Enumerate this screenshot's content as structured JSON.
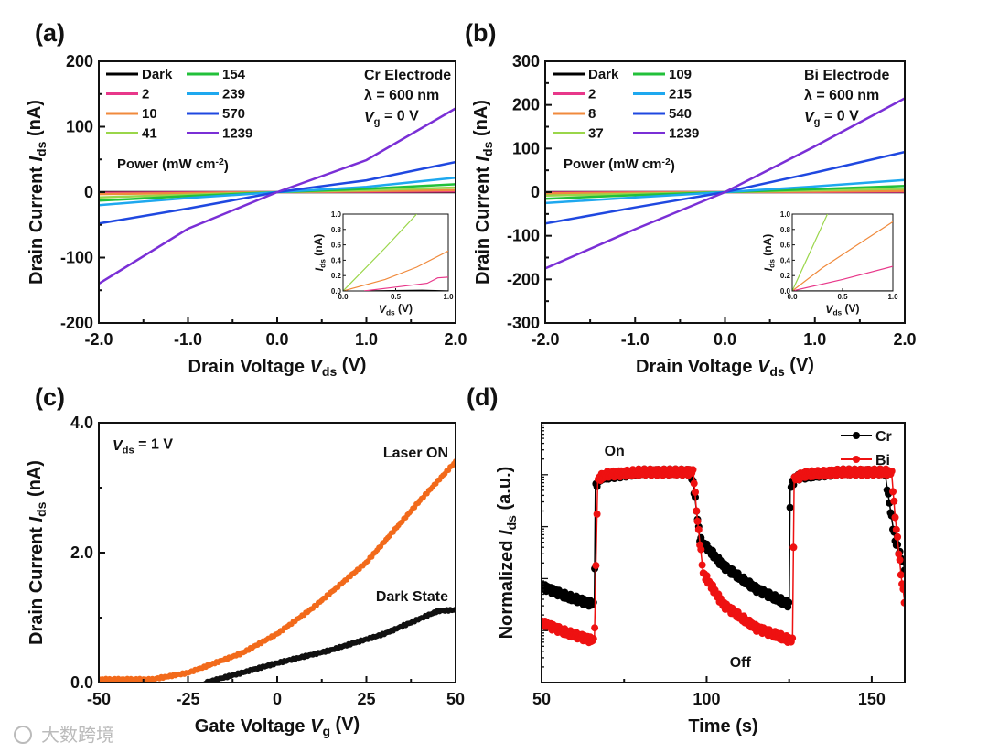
{
  "watermark": "大数跨境",
  "chart_data": [
    {
      "panel": "(a)",
      "type": "line",
      "xlabel": {
        "pre": "Drain Voltage ",
        "var": "V",
        "sub": "ds",
        "post": " (V)"
      },
      "ylabel": {
        "pre": "Drain Current ",
        "var": "I",
        "sub": "ds",
        "post": " (nA)"
      },
      "xlim": [
        -2,
        2
      ],
      "ylim": [
        -200,
        200
      ],
      "xticks": [
        -2,
        -1,
        0,
        1,
        2
      ],
      "xtick_labels": [
        "-2.0",
        "-1.0",
        "0.0",
        "1.0",
        "2.0"
      ],
      "xminor": 0.5,
      "yticks": [
        -200,
        -100,
        0,
        100,
        200
      ],
      "ytick_labels": [
        "-200",
        "-100",
        "0",
        "100",
        "200"
      ],
      "yminor": 50,
      "legend_title": {
        "pre": "Power (mW cm",
        "sup": "-2",
        "post": ")"
      },
      "annotation": [
        "Cr Electrode",
        "λ = 600 nm"
      ],
      "annotation_vg": {
        "var": "V",
        "sub": "g",
        "post": " = 0 V"
      },
      "x": [
        -2,
        -1,
        0,
        1,
        2
      ],
      "series": [
        {
          "name": "Dark",
          "color": "#000000",
          "values": [
            0,
            0,
            0,
            0,
            0
          ]
        },
        {
          "name": "2",
          "color": "#e8388a",
          "values": [
            -1,
            -0.5,
            0,
            0.5,
            1
          ]
        },
        {
          "name": "10",
          "color": "#f08a3c",
          "values": [
            -3,
            -1.5,
            0,
            1.5,
            3
          ]
        },
        {
          "name": "41",
          "color": "#9ad64a",
          "values": [
            -8,
            -4,
            0,
            3,
            7
          ]
        },
        {
          "name": "154",
          "color": "#22c03a",
          "values": [
            -13,
            -6,
            0,
            5,
            12
          ]
        },
        {
          "name": "239",
          "color": "#1ea8ef",
          "values": [
            -20,
            -9,
            0,
            8,
            22
          ]
        },
        {
          "name": "570",
          "color": "#1f48e0",
          "values": [
            -48,
            -25,
            0,
            18,
            46
          ]
        },
        {
          "name": "1239",
          "color": "#7a2fd6",
          "values": [
            -140,
            -56,
            0,
            49,
            128
          ]
        }
      ],
      "inset": {
        "xlabel": {
          "var": "V",
          "sub": "ds",
          "post": " (V)"
        },
        "ylabel": {
          "var": "I",
          "sub": "ds",
          "post": " (nA)"
        },
        "xlim": [
          0,
          1
        ],
        "ylim": [
          0,
          1
        ],
        "xtick_labels": [
          "0.0",
          "0.5",
          "1.0"
        ],
        "ytick_labels": [
          "0.0",
          "0.2",
          "0.4",
          "0.6",
          "0.8",
          "1.0"
        ],
        "series": [
          {
            "name": "Dark",
            "color": "#000000",
            "points": [
              [
                0.2,
                0
              ],
              [
                0.75,
                0.01
              ],
              [
                1,
                0
              ]
            ]
          },
          {
            "name": "2",
            "color": "#e8388a",
            "points": [
              [
                0.2,
                0
              ],
              [
                0.5,
                0.05
              ],
              [
                0.8,
                0.1
              ],
              [
                0.9,
                0.17
              ],
              [
                1,
                0.18
              ]
            ]
          },
          {
            "name": "10",
            "color": "#f08a3c",
            "points": [
              [
                0,
                0
              ],
              [
                0.4,
                0.15
              ],
              [
                0.7,
                0.31
              ],
              [
                1,
                0.52
              ]
            ]
          },
          {
            "name": "41",
            "color": "#9ad64a",
            "points": [
              [
                0,
                0
              ],
              [
                0.4,
                0.56
              ],
              [
                0.7,
                1.0
              ]
            ]
          }
        ]
      }
    },
    {
      "panel": "(b)",
      "type": "line",
      "xlabel": {
        "pre": "Drain Voltage ",
        "var": "V",
        "sub": "ds",
        "post": " (V)"
      },
      "ylabel": {
        "pre": "Drain Current ",
        "var": "I",
        "sub": "ds",
        "post": " (nA)"
      },
      "xlim": [
        -2,
        2
      ],
      "ylim": [
        -300,
        300
      ],
      "xticks": [
        -2,
        -1,
        0,
        1,
        2
      ],
      "xtick_labels": [
        "-2.0",
        "-1.0",
        "0.0",
        "1.0",
        "2.0"
      ],
      "xminor": 0.5,
      "yticks": [
        -300,
        -200,
        -100,
        0,
        100,
        200,
        300
      ],
      "ytick_labels": [
        "-300",
        "-200",
        "-100",
        "0",
        "100",
        "200",
        "300"
      ],
      "yminor": 50,
      "legend_title": {
        "pre": "Power (mW cm",
        "sup": "-2",
        "post": ")"
      },
      "annotation": [
        "Bi Electrode",
        "λ = 600 nm"
      ],
      "annotation_vg": {
        "var": "V",
        "sub": "g",
        "post": " = 0 V"
      },
      "x": [
        -2,
        -1,
        0,
        1,
        2
      ],
      "series": [
        {
          "name": "Dark",
          "color": "#000000",
          "values": [
            0,
            0,
            0,
            0,
            0
          ]
        },
        {
          "name": "2",
          "color": "#e8388a",
          "values": [
            -1,
            -0.5,
            0,
            0.5,
            1
          ]
        },
        {
          "name": "8",
          "color": "#f08a3c",
          "values": [
            -3,
            -1.5,
            0,
            1.5,
            3
          ]
        },
        {
          "name": "37",
          "color": "#9ad64a",
          "values": [
            -8,
            -4,
            0,
            4,
            8
          ]
        },
        {
          "name": "109",
          "color": "#22c03a",
          "values": [
            -15,
            -7,
            0,
            7,
            14
          ]
        },
        {
          "name": "215",
          "color": "#1ea8ef",
          "values": [
            -25,
            -12,
            0,
            13,
            28
          ]
        },
        {
          "name": "540",
          "color": "#1f48e0",
          "values": [
            -72,
            -35,
            0,
            45,
            92
          ]
        },
        {
          "name": "1239",
          "color": "#7a2fd6",
          "values": [
            -175,
            -85,
            0,
            105,
            215
          ]
        }
      ],
      "inset": {
        "xlabel": {
          "var": "V",
          "sub": "ds",
          "post": " (V)"
        },
        "ylabel": {
          "var": "I",
          "sub": "ds",
          "post": " (nA)"
        },
        "xlim": [
          0,
          1
        ],
        "ylim": [
          0,
          1
        ],
        "xtick_labels": [
          "0.0",
          "0.5",
          "1.0"
        ],
        "ytick_labels": [
          "0.0",
          "0.2",
          "0.4",
          "0.6",
          "0.8",
          "1.0"
        ],
        "series": [
          {
            "name": "Dark",
            "color": "#000000",
            "points": [
              [
                0,
                0
              ],
              [
                1,
                0
              ]
            ]
          },
          {
            "name": "2",
            "color": "#e8388a",
            "points": [
              [
                0,
                0
              ],
              [
                0.5,
                0.15
              ],
              [
                1,
                0.32
              ]
            ]
          },
          {
            "name": "8",
            "color": "#f08a3c",
            "points": [
              [
                0,
                0
              ],
              [
                0.3,
                0.3
              ],
              [
                0.6,
                0.56
              ],
              [
                1,
                0.9
              ]
            ]
          },
          {
            "name": "37",
            "color": "#9ad64a",
            "points": [
              [
                0,
                0
              ],
              [
                0.35,
                1.0
              ]
            ]
          }
        ]
      }
    },
    {
      "panel": "(c)",
      "type": "scatter",
      "xlabel": {
        "pre": "Gate Voltage ",
        "var": "V",
        "sub": "g",
        "post": " (V)"
      },
      "ylabel": {
        "pre": "Drain Current ",
        "var": "I",
        "sub": "ds",
        "post": " (nA)"
      },
      "xlim": [
        -50,
        50
      ],
      "ylim": [
        0,
        4
      ],
      "xticks": [
        -50,
        -25,
        0,
        25,
        50
      ],
      "xtick_labels": [
        "-50",
        "-25",
        "0",
        "25",
        "50"
      ],
      "xminor": 12.5,
      "yticks": [
        0,
        2,
        4
      ],
      "ytick_labels": [
        "0.0",
        "2.0",
        "4.0"
      ],
      "yminor": 1,
      "annotation_vds": {
        "var": "V",
        "sub": "ds",
        "post": " = 1 V"
      },
      "series": [
        {
          "name": "Laser ON",
          "color": "#f26a1b",
          "points": [
            [
              -50,
              0.05
            ],
            [
              -35,
              0.05
            ],
            [
              -25,
              0.15
            ],
            [
              -10,
              0.45
            ],
            [
              0,
              0.75
            ],
            [
              10,
              1.15
            ],
            [
              25,
              1.85
            ],
            [
              40,
              2.8
            ],
            [
              50,
              3.4
            ]
          ]
        },
        {
          "name": "Dark State",
          "color": "#111111",
          "points": [
            [
              -20,
              0
            ],
            [
              -10,
              0.15
            ],
            [
              0,
              0.3
            ],
            [
              15,
              0.5
            ],
            [
              30,
              0.75
            ],
            [
              45,
              1.1
            ],
            [
              50,
              1.12
            ]
          ]
        }
      ]
    },
    {
      "panel": "(d)",
      "type": "scatter",
      "xlabel": {
        "pre": "Time (s)"
      },
      "ylabel": {
        "pre": "Normalized ",
        "var": "I",
        "sub": "ds",
        "post": " (a.u.)"
      },
      "xlim": [
        50,
        160
      ],
      "ylim": [
        0,
        1
      ],
      "yscale": "log (unlabeled)",
      "xticks": [
        50,
        100,
        150
      ],
      "xtick_labels": [
        "50",
        "100",
        "150"
      ],
      "xminor": 25,
      "annotations": [
        "On",
        "Off"
      ],
      "legend_position": "top-right",
      "series": [
        {
          "name": "Cr",
          "color": "#000000",
          "points": [
            [
              50,
              0.37
            ],
            [
              58,
              0.33
            ],
            [
              66,
              0.3
            ],
            [
              66.3,
              0.75
            ],
            [
              68,
              0.79
            ],
            [
              80,
              0.81
            ],
            [
              95,
              0.81
            ],
            [
              96,
              0.76
            ],
            [
              98,
              0.55
            ],
            [
              105,
              0.45
            ],
            [
              115,
              0.36
            ],
            [
              125,
              0.3
            ],
            [
              125.3,
              0.75
            ],
            [
              127,
              0.79
            ],
            [
              140,
              0.81
            ],
            [
              154,
              0.81
            ],
            [
              155,
              0.72
            ],
            [
              157,
              0.55
            ],
            [
              160,
              0.44
            ]
          ]
        },
        {
          "name": "Bi",
          "color": "#ee1111",
          "points": [
            [
              50,
              0.23
            ],
            [
              58,
              0.19
            ],
            [
              66,
              0.16
            ],
            [
              67,
              0.78
            ],
            [
              69,
              0.8
            ],
            [
              80,
              0.81
            ],
            [
              96,
              0.81
            ],
            [
              97,
              0.65
            ],
            [
              99,
              0.42
            ],
            [
              105,
              0.3
            ],
            [
              115,
              0.21
            ],
            [
              126,
              0.16
            ],
            [
              126.5,
              0.78
            ],
            [
              129,
              0.8
            ],
            [
              140,
              0.81
            ],
            [
              156,
              0.81
            ],
            [
              157,
              0.65
            ],
            [
              159,
              0.4
            ],
            [
              160,
              0.31
            ]
          ]
        }
      ]
    }
  ]
}
